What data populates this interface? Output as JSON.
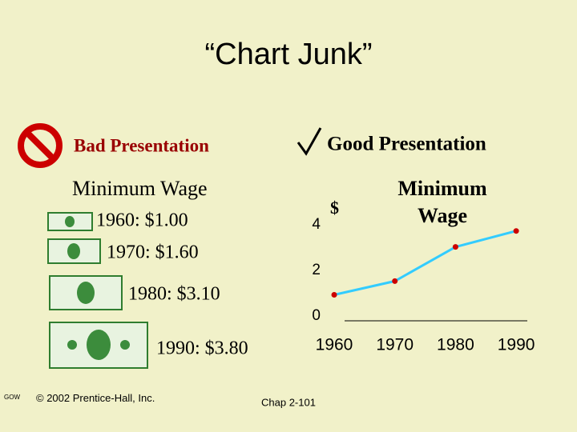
{
  "slide": {
    "title": "“Chart Junk”",
    "bad_label": "Bad Presentation",
    "good_label": "Good Presentation",
    "bad_title": "Minimum Wage",
    "bad_items": [
      "1960: $1.00",
      "1970: $1.60",
      "1980: $3.10",
      "1990: $3.80"
    ],
    "footer": {
      "code": "GOW",
      "copyright": "© 2002 Prentice-Hall, Inc.",
      "page": "Chap 2-101"
    }
  },
  "chart_data": {
    "type": "line",
    "title": "Minimum Wage",
    "y_label": "$",
    "categories": [
      "1960",
      "1970",
      "1980",
      "1990"
    ],
    "values": [
      1.0,
      1.6,
      3.1,
      3.8
    ],
    "color": "#33ccff",
    "marker_color": "#cc0000",
    "ylim": [
      0,
      4
    ],
    "yticks": [
      0,
      2,
      4
    ],
    "grid": false
  }
}
